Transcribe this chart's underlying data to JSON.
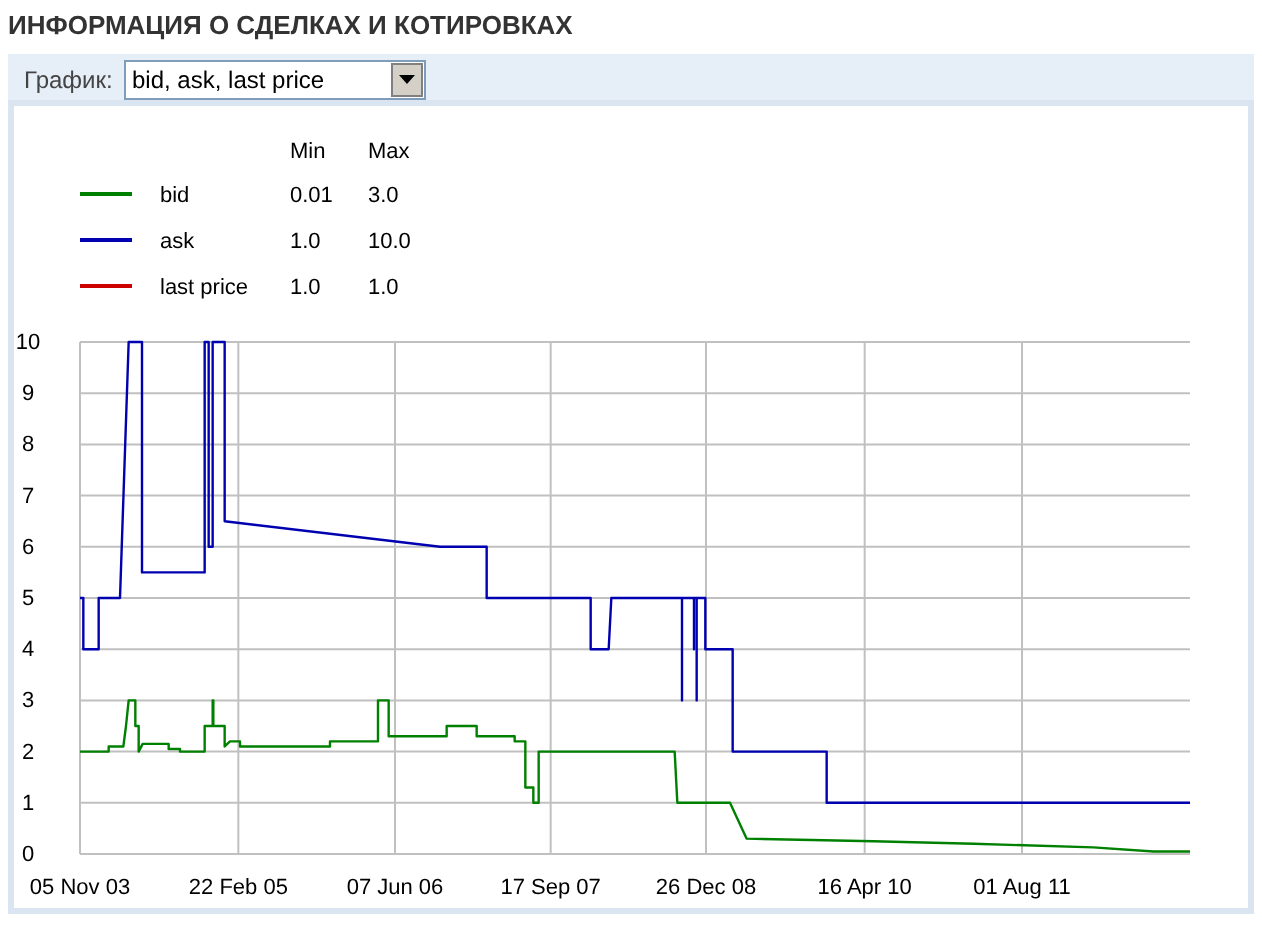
{
  "chart_data": {
    "type": "line",
    "title": "ИНФОРМАЦИЯ О СДЕЛКАХ И КОТИРОВКАХ",
    "annotations": [
      "График:",
      "bid, ask, last price",
      "Min",
      "Max",
      "0.01",
      "3.0",
      "1.0",
      "10.0",
      "1.0",
      "1.0"
    ],
    "xlim": [
      "2003-11-05",
      "2012-12-17"
    ],
    "xticks": [
      {
        "value": "2003-11-05",
        "label": "05 Nov 03"
      },
      {
        "value": "2005-02-22",
        "label": "22 Feb 05"
      },
      {
        "value": "2006-06-07",
        "label": "07 Jun 06"
      },
      {
        "value": "2007-09-17",
        "label": "17 Sep 07"
      },
      {
        "value": "2008-12-26",
        "label": "26 Dec 08"
      },
      {
        "value": "2010-04-16",
        "label": "16 Apr 10"
      },
      {
        "value": "2011-08-01",
        "label": "01 Aug 11"
      }
    ],
    "ylim": [
      0,
      10
    ],
    "yticks": [
      0,
      1,
      2,
      3,
      4,
      5,
      6,
      7,
      8,
      9,
      10
    ],
    "grid": true,
    "legend": "top left",
    "line_style": "solid",
    "series": [
      {
        "name": "bid",
        "color": "#008000",
        "x": [
          "2003-11-05",
          "2004-01-30",
          "2004-01-30",
          "2004-03-14",
          "2004-03-22",
          "2004-03-30",
          "2004-04-19",
          "2004-04-19",
          "2004-04-29",
          "2004-04-29",
          "2004-05-11",
          "2004-07-28",
          "2004-07-28",
          "2004-08-31",
          "2004-08-31",
          "2004-11-13",
          "2004-11-13",
          "2004-12-07",
          "2004-12-07",
          "2004-12-09",
          "2004-12-09",
          "2005-01-12",
          "2005-01-12",
          "2005-01-28",
          "2005-02-27",
          "2005-02-27",
          "2005-11-24",
          "2005-11-24",
          "2006-04-17",
          "2006-04-17",
          "2006-05-19",
          "2006-05-19",
          "2006-11-09",
          "2006-11-09",
          "2007-02-07",
          "2007-02-07",
          "2007-06-01",
          "2007-06-01",
          "2007-07-03",
          "2007-07-03",
          "2007-07-27",
          "2007-07-27",
          "2007-08-12",
          "2007-08-12",
          "2008-09-23",
          "2008-10-01",
          "2009-03-08",
          "2009-04-27",
          "2010-05-12",
          "2011-03-08",
          "2012-03-02",
          "2012-08-29",
          "2012-12-17"
        ],
        "values": [
          2.0,
          2.0,
          2.1,
          2.1,
          2.5,
          3.0,
          3.0,
          2.5,
          2.5,
          2.0,
          2.15,
          2.15,
          2.05,
          2.05,
          2.0,
          2.0,
          2.5,
          2.5,
          3.0,
          3.0,
          2.5,
          2.5,
          2.1,
          2.2,
          2.2,
          2.1,
          2.1,
          2.2,
          2.2,
          3.0,
          3.0,
          2.3,
          2.3,
          2.5,
          2.5,
          2.3,
          2.3,
          2.2,
          2.2,
          1.3,
          1.3,
          1.0,
          1.0,
          2.0,
          2.0,
          1.0,
          1.0,
          0.3,
          0.25,
          0.2,
          0.13,
          0.05,
          0.05
        ]
      },
      {
        "name": "ask",
        "color": "#0000b0",
        "x": [
          "2003-11-05",
          "2003-11-15",
          "2003-11-15",
          "2003-12-31",
          "2003-12-31",
          "2004-03-04",
          "2004-03-30",
          "2004-05-09",
          "2004-05-09",
          "2004-11-13",
          "2004-11-13",
          "2004-11-25",
          "2004-11-25",
          "2004-12-07",
          "2004-12-07",
          "2005-01-12",
          "2005-01-12",
          "2006-10-20",
          "2007-03-09",
          "2007-03-09",
          "2008-01-15",
          "2008-01-15",
          "2008-03-09",
          "2008-03-17",
          "2008-10-15",
          "2008-10-15",
          "2008-10-15",
          "2008-11-20",
          "2008-11-20",
          "2008-11-20",
          "2008-11-28",
          "2008-11-28",
          "2008-11-28",
          "2008-12-24",
          "2008-12-24",
          "2009-03-16",
          "2009-03-16",
          "2009-12-23",
          "2009-12-23",
          "2012-12-17"
        ],
        "values": [
          5,
          5,
          4,
          4,
          5,
          5,
          10,
          10,
          5.5,
          5.5,
          10,
          10,
          6,
          6,
          10,
          10,
          6.5,
          6.0,
          6.0,
          5,
          5,
          4,
          4,
          5,
          5,
          3,
          5,
          5,
          4,
          5,
          5,
          3,
          5,
          5,
          4,
          4,
          2,
          2,
          1,
          1
        ]
      },
      {
        "name": "last price",
        "color": "#cc0000"
      }
    ]
  }
}
